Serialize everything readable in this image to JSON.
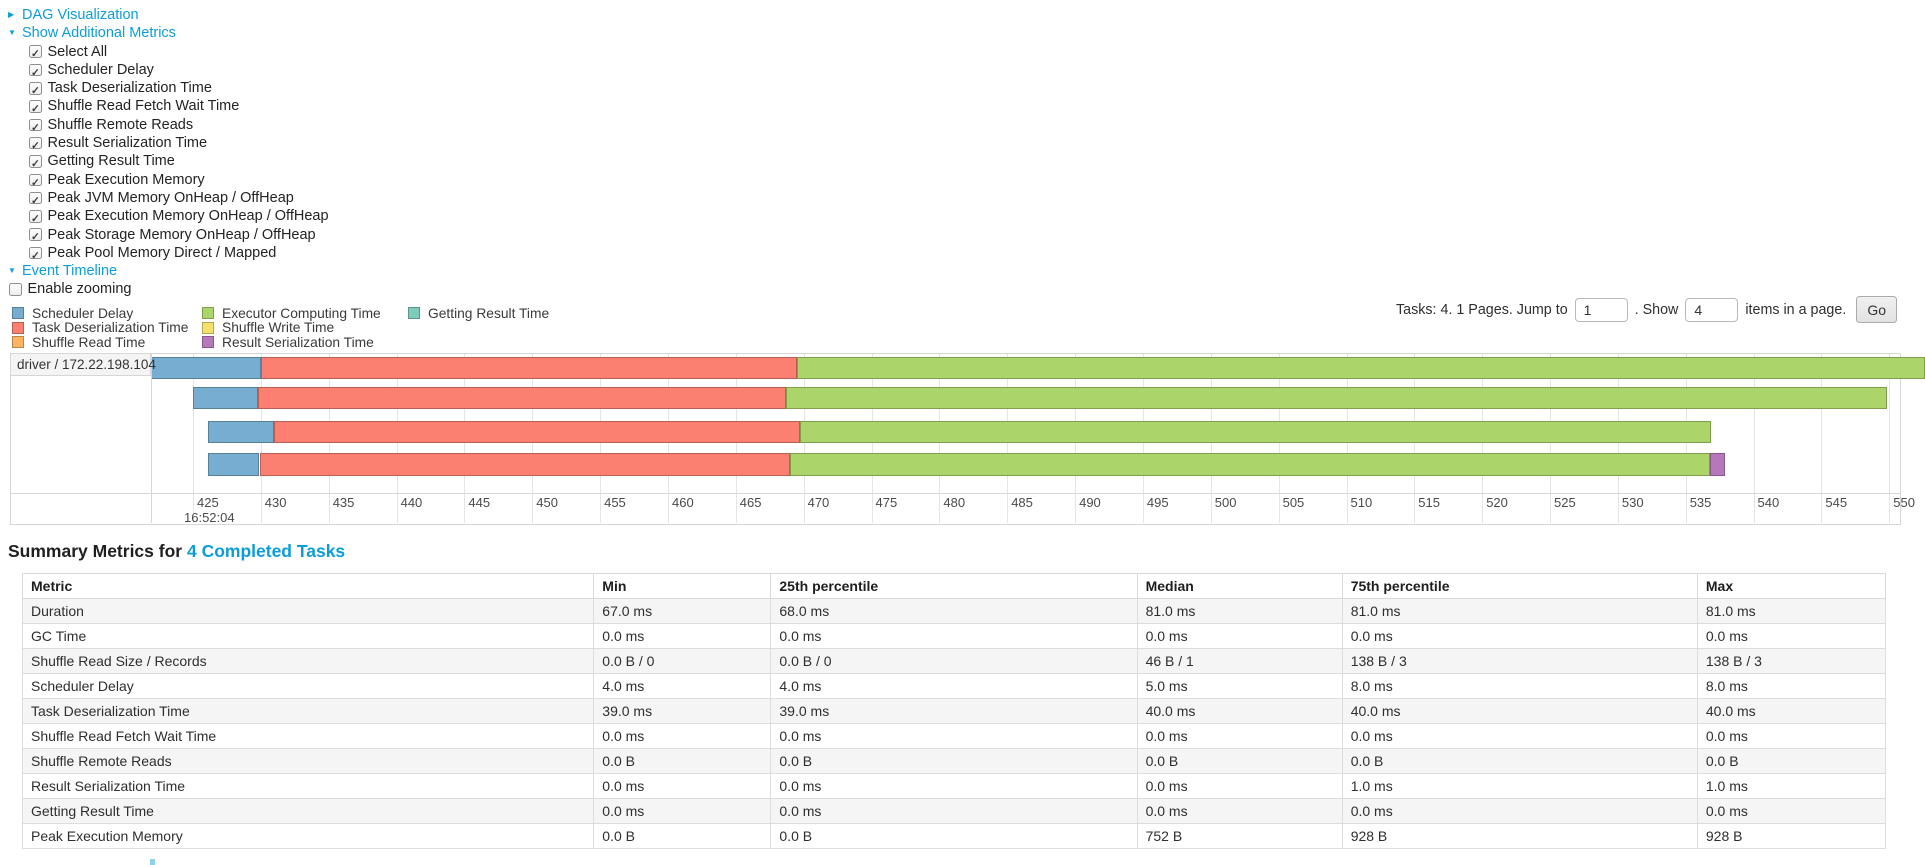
{
  "colors": {
    "link": "#0b9ddb",
    "scheduler_delay": "#76ADD1",
    "task_deserialization": "#FB8072",
    "shuffle_read": "#FDB462",
    "executor_computing": "#ABD56A",
    "shuffle_write": "#F5E16B",
    "result_serialization": "#B578BA",
    "getting_result": "#7CCBBB"
  },
  "sections": {
    "dag": {
      "label": "DAG Visualization",
      "collapsed": true
    },
    "metrics": {
      "label": "Show Additional Metrics",
      "collapsed": false,
      "items": [
        {
          "label": "Select All",
          "checked": true
        },
        {
          "label": "Scheduler Delay",
          "checked": true
        },
        {
          "label": "Task Deserialization Time",
          "checked": true
        },
        {
          "label": "Shuffle Read Fetch Wait Time",
          "checked": true
        },
        {
          "label": "Shuffle Remote Reads",
          "checked": true
        },
        {
          "label": "Result Serialization Time",
          "checked": true
        },
        {
          "label": "Getting Result Time",
          "checked": true
        },
        {
          "label": "Peak Execution Memory",
          "checked": true
        },
        {
          "label": "Peak JVM Memory OnHeap / OffHeap",
          "checked": true
        },
        {
          "label": "Peak Execution Memory OnHeap / OffHeap",
          "checked": true
        },
        {
          "label": "Peak Storage Memory OnHeap / OffHeap",
          "checked": true
        },
        {
          "label": "Peak Pool Memory Direct / Mapped",
          "checked": true
        }
      ]
    },
    "event_timeline": {
      "label": "Event Timeline",
      "collapsed": false,
      "enable_zooming": "Enable zooming",
      "zooming_checked": false
    }
  },
  "legend": {
    "columns": [
      [
        {
          "label": "Scheduler Delay",
          "type": "scheduler_delay"
        },
        {
          "label": "Task Deserialization Time",
          "type": "task_deserialization"
        },
        {
          "label": "Shuffle Read Time",
          "type": "shuffle_read"
        }
      ],
      [
        {
          "label": "Executor Computing Time",
          "type": "executor_computing"
        },
        {
          "label": "Shuffle Write Time",
          "type": "shuffle_write"
        },
        {
          "label": "Result Serialization Time",
          "type": "result_serialization"
        }
      ],
      [
        {
          "label": "Getting Result Time",
          "type": "getting_result"
        }
      ]
    ]
  },
  "pagination": {
    "info_text": "Tasks: 4. 1 Pages. Jump to",
    "jump_value": "1",
    "show_label": ". Show",
    "show_value": "4",
    "items_label": "items in a page.",
    "go_label": "Go"
  },
  "chart_data": {
    "type": "timeline",
    "group_label": "driver / 172.22.198.104",
    "x_axis": {
      "tick_start": 425,
      "tick_end": 550,
      "tick_step": 5,
      "time_label": "16:52:04",
      "unit": "ms within second"
    },
    "tasks": [
      {
        "segments": [
          {
            "type": "scheduler_delay",
            "from": 421.9,
            "to": 430.0
          },
          {
            "type": "task_deserialization",
            "from": 430.0,
            "to": 469.5
          },
          {
            "type": "executor_computing",
            "from": 469.5,
            "to": 552.6
          }
        ]
      },
      {
        "segments": [
          {
            "type": "scheduler_delay",
            "from": 425.0,
            "to": 429.8
          },
          {
            "type": "task_deserialization",
            "from": 429.8,
            "to": 468.7
          },
          {
            "type": "executor_computing",
            "from": 468.7,
            "to": 549.8
          }
        ]
      },
      {
        "segments": [
          {
            "type": "scheduler_delay",
            "from": 426.1,
            "to": 431.0
          },
          {
            "type": "task_deserialization",
            "from": 431.0,
            "to": 469.7
          },
          {
            "type": "executor_computing",
            "from": 469.7,
            "to": 536.9
          }
        ]
      },
      {
        "segments": [
          {
            "type": "scheduler_delay",
            "from": 426.1,
            "to": 429.9
          },
          {
            "type": "task_deserialization",
            "from": 429.9,
            "to": 469.0
          },
          {
            "type": "executor_computing",
            "from": 469.0,
            "to": 536.8
          },
          {
            "type": "result_serialization",
            "from": 536.8,
            "to": 537.9
          }
        ]
      }
    ]
  },
  "summary": {
    "title_prefix": "Summary Metrics for",
    "title_link": "4 Completed Tasks",
    "table": {
      "headers": [
        "Metric",
        "Min",
        "25th percentile",
        "Median",
        "75th percentile",
        "Max"
      ],
      "rows": [
        [
          "Duration",
          "67.0 ms",
          "68.0 ms",
          "81.0 ms",
          "81.0 ms",
          "81.0 ms"
        ],
        [
          "GC Time",
          "0.0 ms",
          "0.0 ms",
          "0.0 ms",
          "0.0 ms",
          "0.0 ms"
        ],
        [
          "Shuffle Read Size / Records",
          "0.0 B / 0",
          "0.0 B / 0",
          "46 B / 1",
          "138 B / 3",
          "138 B / 3"
        ],
        [
          "Scheduler Delay",
          "4.0 ms",
          "4.0 ms",
          "5.0 ms",
          "8.0 ms",
          "8.0 ms"
        ],
        [
          "Task Deserialization Time",
          "39.0 ms",
          "39.0 ms",
          "40.0 ms",
          "40.0 ms",
          "40.0 ms"
        ],
        [
          "Shuffle Read Fetch Wait Time",
          "0.0 ms",
          "0.0 ms",
          "0.0 ms",
          "0.0 ms",
          "0.0 ms"
        ],
        [
          "Shuffle Remote Reads",
          "0.0 B",
          "0.0 B",
          "0.0 B",
          "0.0 B",
          "0.0 B"
        ],
        [
          "Result Serialization Time",
          "0.0 ms",
          "0.0 ms",
          "0.0 ms",
          "1.0 ms",
          "1.0 ms"
        ],
        [
          "Getting Result Time",
          "0.0 ms",
          "0.0 ms",
          "0.0 ms",
          "0.0 ms",
          "0.0 ms"
        ],
        [
          "Peak Execution Memory",
          "0.0 B",
          "0.0 B",
          "752 B",
          "928 B",
          "928 B"
        ]
      ]
    }
  }
}
